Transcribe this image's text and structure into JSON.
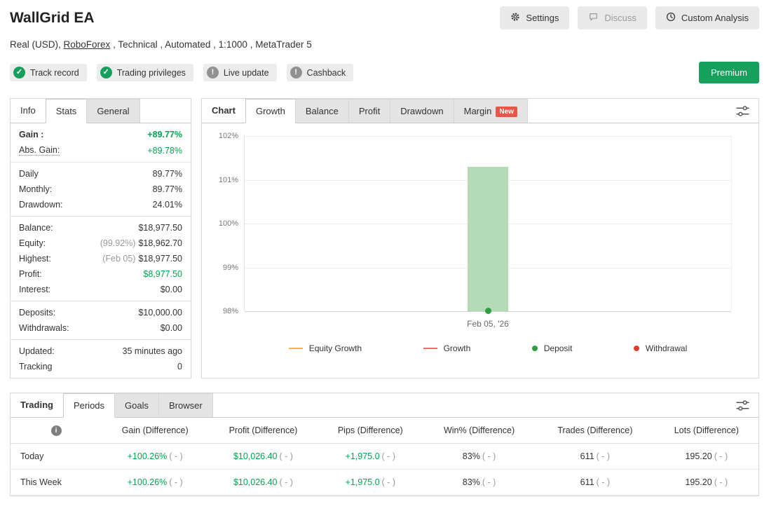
{
  "header": {
    "title": "WallGrid EA",
    "actions": [
      {
        "label": "Settings",
        "icon": "gear"
      },
      {
        "label": "Discuss",
        "icon": "discuss"
      },
      {
        "label": "Custom Analysis",
        "icon": "clock"
      }
    ],
    "subtitle": {
      "prefix": "Real (USD), ",
      "link": "RoboForex",
      "suffix": " , Technical , Automated , 1:1000 , MetaTrader 5"
    }
  },
  "badges": {
    "items": [
      {
        "label": "Track record",
        "status": "ok"
      },
      {
        "label": "Trading privileges",
        "status": "ok"
      },
      {
        "label": "Live update",
        "status": "neutral"
      },
      {
        "label": "Cashback",
        "status": "neutral"
      }
    ],
    "premium": "Premium"
  },
  "stats_panel": {
    "tabs": [
      {
        "label": "Info"
      },
      {
        "label": "Stats",
        "active": true
      },
      {
        "label": "General"
      }
    ],
    "groups": [
      {
        "rows": [
          {
            "label": "Gain :",
            "value": "+89.77%"
          },
          {
            "label": "Abs. Gain:",
            "value": "+89.78%"
          }
        ]
      },
      {
        "rows": [
          {
            "label": "Daily",
            "value": "89.77%"
          },
          {
            "label": "Monthly:",
            "value": "89.77%"
          },
          {
            "label": "Drawdown:",
            "value": "24.01%"
          }
        ]
      },
      {
        "rows": [
          {
            "label": "Balance:",
            "value": "$18,977.50"
          },
          {
            "label": "Equity:",
            "muted": "(99.92%)",
            "value": "$18,962.70"
          },
          {
            "label": "Highest:",
            "muted": "(Feb 05)",
            "value": "$18,977.50"
          },
          {
            "label": "Profit:",
            "value": "$8,977.50"
          },
          {
            "label": "Interest:",
            "value": "$0.00"
          }
        ]
      },
      {
        "rows": [
          {
            "label": "Deposits:",
            "value": "$10,000.00"
          },
          {
            "label": "Withdrawals:",
            "value": "$0.00"
          }
        ]
      },
      {
        "rows": [
          {
            "label": "Updated:",
            "value": "35 minutes ago"
          },
          {
            "label": "Tracking",
            "value": "0"
          }
        ]
      }
    ]
  },
  "chart_panel": {
    "tabs": [
      {
        "label": "Chart",
        "kind": "title"
      },
      {
        "label": "Growth",
        "active": true
      },
      {
        "label": "Balance"
      },
      {
        "label": "Profit"
      },
      {
        "label": "Drawdown"
      },
      {
        "label": "Margin",
        "badge": "New"
      }
    ],
    "legend": [
      {
        "label": "Equity Growth",
        "marker": "line",
        "color": "#f3b04e"
      },
      {
        "label": "Growth",
        "marker": "line",
        "color": "#ef6a6a"
      },
      {
        "label": "Deposit",
        "marker": "dot",
        "color": "#2f9e44"
      },
      {
        "label": "Withdrawal",
        "marker": "dot",
        "color": "#e23d30"
      }
    ]
  },
  "chart_data": {
    "type": "bar",
    "title": "Growth",
    "x": [
      "Feb 05, '26"
    ],
    "xlabel": "",
    "ylabel": "",
    "ylim": [
      98,
      102
    ],
    "yticks": [
      "102%",
      "101%",
      "100%",
      "99%",
      "98%"
    ],
    "grid": true,
    "series": [
      {
        "name": "Growth",
        "type": "bar",
        "bar_range": [
          98.0,
          101.3
        ]
      },
      {
        "name": "Deposit",
        "type": "scatter",
        "values": [
          98.0
        ]
      }
    ]
  },
  "bottom_panel": {
    "tabs": [
      {
        "label": "Trading",
        "kind": "title"
      },
      {
        "label": "Periods",
        "active": true
      },
      {
        "label": "Goals"
      },
      {
        "label": "Browser"
      }
    ],
    "table": {
      "headers": [
        "Gain (Difference)",
        "Profit (Difference)",
        "Pips (Difference)",
        "Win% (Difference)",
        "Trades (Difference)",
        "Lots (Difference)"
      ],
      "rows": [
        {
          "period": "Today",
          "cells": [
            {
              "value": "+100.26%",
              "diff": "( - )",
              "positive": true
            },
            {
              "value": "$10,026.40",
              "diff": "( - )",
              "positive": true
            },
            {
              "value": "+1,975.0",
              "diff": "( - )",
              "positive": true
            },
            {
              "value": "83%",
              "diff": "( - )"
            },
            {
              "value": "611",
              "diff": "( - )"
            },
            {
              "value": "195.20",
              "diff": "( - )"
            }
          ]
        },
        {
          "period": "This Week",
          "cells": [
            {
              "value": "+100.26%",
              "diff": "( - )",
              "positive": true
            },
            {
              "value": "$10,026.40",
              "diff": "( - )",
              "positive": true
            },
            {
              "value": "+1,975.0",
              "diff": "( - )",
              "positive": true
            },
            {
              "value": "83%",
              "diff": "( - )"
            },
            {
              "value": "611",
              "diff": "( - )"
            },
            {
              "value": "195.20",
              "diff": "( - )"
            }
          ]
        }
      ]
    }
  },
  "colors": {
    "accent_green": "#00a651",
    "bar_fill": "#b4dab6",
    "deposit_dot": "#2f9e44",
    "withdrawal_dot": "#e23d30",
    "equity_line": "#f3b04e",
    "growth_line": "#ef6a6a",
    "new_badge": "#e8564a",
    "premium_bg": "#16a05c"
  }
}
